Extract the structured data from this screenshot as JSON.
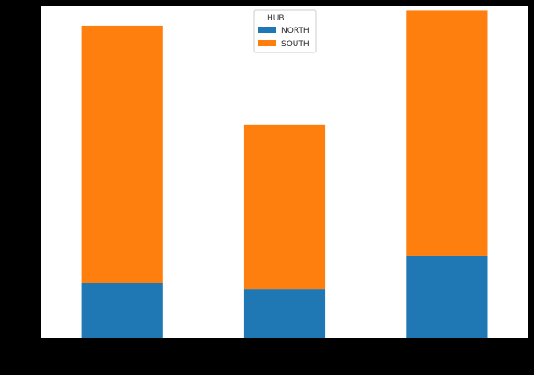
{
  "chart_data": {
    "type": "bar",
    "stacked": true,
    "categories": [
      "",
      "",
      ""
    ],
    "series": [
      {
        "name": "NORTH",
        "values": [
          14,
          12.5,
          21
        ],
        "color": "#1f77b4"
      },
      {
        "name": "SOUTH",
        "values": [
          66,
          42,
          63
        ],
        "color": "#ff7f0e"
      }
    ],
    "ylim": [
      0,
      85
    ],
    "xlabel": "",
    "ylabel": "",
    "legend": {
      "title": "HUB",
      "placement": "top-center"
    },
    "grid": false,
    "background": "#ffffff",
    "frame_color": "#000000"
  }
}
